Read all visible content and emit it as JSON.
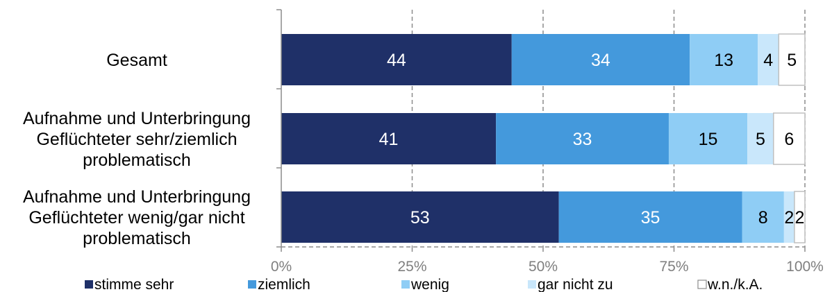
{
  "chart_data": {
    "type": "bar",
    "orientation": "horizontal",
    "stacked": true,
    "categories": [
      [
        "Gesamt"
      ],
      [
        "Aufnahme und Unterbringung",
        "Geflüchteter sehr/ziemlich",
        "problematisch"
      ],
      [
        "Aufnahme und Unterbringung",
        "Geflüchteter wenig/gar nicht",
        "problematisch"
      ]
    ],
    "series": [
      {
        "name": "stimme sehr",
        "values": [
          44,
          41,
          53
        ],
        "color": "#1f3068",
        "label_color": "#ffffff"
      },
      {
        "name": "ziemlich",
        "values": [
          34,
          33,
          35
        ],
        "color": "#4499dc",
        "label_color": "#ffffff"
      },
      {
        "name": "wenig",
        "values": [
          13,
          15,
          8
        ],
        "color": "#8fcdf5",
        "label_color": "#000000"
      },
      {
        "name": "gar nicht zu",
        "values": [
          4,
          5,
          2
        ],
        "color": "#c9e7fb",
        "label_color": "#000000"
      },
      {
        "name": "w.n./k.A.",
        "values": [
          5,
          6,
          2
        ],
        "color": "#ffffff",
        "label_color": "#000000"
      }
    ],
    "xlim": [
      0,
      100
    ],
    "xticks": [
      "0%",
      "25%",
      "50%",
      "75%",
      "100%"
    ],
    "grid": true,
    "legend_position": "bottom"
  }
}
